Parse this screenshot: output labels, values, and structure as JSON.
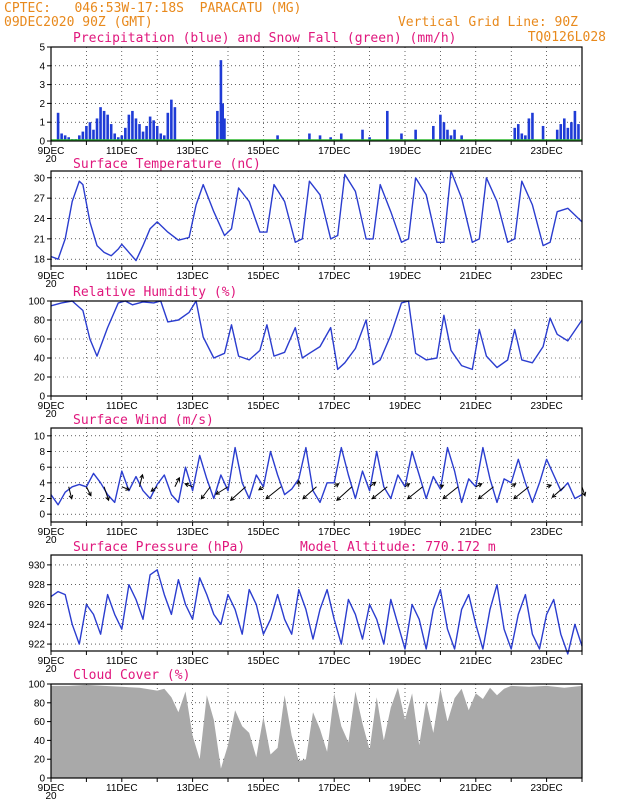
{
  "header": {
    "station_line": "CPTEC:   046:53W-17:18S  PARACATU (MG)",
    "date_line": "09DEC2020 90Z (GMT)",
    "grid_line": "Vertical Grid Line: 90Z",
    "code_line": "TQ0126L028"
  },
  "x_axis": {
    "labels": [
      "9DEC",
      "11DEC",
      "13DEC",
      "15DEC",
      "17DEC",
      "19DEC",
      "21DEC",
      "23DEC"
    ],
    "year_stub": "20",
    "range_days": [
      0,
      15
    ]
  },
  "colors": {
    "line": "#2b3dcf",
    "precip": "#1f3bd6",
    "snow": "#2fb82f",
    "cloud": "#a9a9a9",
    "wind_arrow": "#000000",
    "grid": "#000000"
  },
  "chart_data": [
    {
      "id": "precip",
      "type": "bar",
      "title": "Precipitation (blue) and Snow Fall (green) (mm/h)",
      "ylim": [
        0,
        5
      ],
      "yticks": [
        0,
        1,
        2,
        3,
        4,
        5
      ],
      "grid": true,
      "series": [
        {
          "name": "Precipitation",
          "x": [
            0.2,
            0.3,
            0.4,
            0.5,
            0.6,
            0.7,
            0.8,
            0.9,
            1.0,
            1.1,
            1.2,
            1.3,
            1.4,
            1.5,
            1.6,
            1.7,
            1.8,
            1.9,
            2.0,
            2.1,
            2.2,
            2.3,
            2.4,
            2.5,
            2.6,
            2.7,
            2.8,
            2.9,
            3.0,
            3.1,
            3.2,
            3.3,
            3.4,
            3.5,
            4.7,
            4.8,
            4.85,
            4.9,
            6.4,
            7.3,
            7.6,
            7.9,
            8.2,
            8.8,
            9.0,
            9.5,
            9.9,
            10.3,
            10.8,
            11.0,
            11.1,
            11.2,
            11.3,
            11.4,
            11.6,
            13.1,
            13.2,
            13.3,
            13.4,
            13.5,
            13.6,
            13.9,
            14.3,
            14.4,
            14.5,
            14.6,
            14.7,
            14.8,
            14.9
          ],
          "values": [
            1.5,
            0.4,
            0.3,
            0.2,
            0.1,
            0.1,
            0.3,
            0.5,
            0.8,
            1.0,
            0.6,
            1.2,
            1.8,
            1.6,
            1.4,
            0.9,
            0.4,
            0.2,
            0.3,
            0.7,
            1.4,
            1.6,
            1.2,
            0.9,
            0.5,
            0.8,
            1.3,
            1.1,
            0.8,
            0.4,
            0.3,
            1.5,
            2.2,
            1.8,
            1.6,
            4.3,
            2.0,
            1.2,
            0.3,
            0.4,
            0.3,
            0.2,
            0.4,
            0.6,
            0.2,
            1.6,
            0.4,
            0.6,
            0.8,
            1.4,
            1.0,
            0.6,
            0.3,
            0.6,
            0.3,
            0.7,
            0.9,
            0.4,
            0.3,
            1.2,
            1.5,
            0.8,
            0.6,
            0.9,
            1.2,
            0.7,
            1.0,
            1.6,
            0.9
          ]
        },
        {
          "name": "Snow Fall",
          "x": [],
          "values": []
        }
      ]
    },
    {
      "id": "temp",
      "type": "line",
      "title": "Surface Temperature (nC)",
      "ylim": [
        17,
        31
      ],
      "yticks": [
        18,
        21,
        24,
        27,
        30
      ],
      "grid": true,
      "x": [
        0,
        0.2,
        0.4,
        0.6,
        0.8,
        0.9,
        1.1,
        1.3,
        1.5,
        1.7,
        1.9,
        2.0,
        2.2,
        2.4,
        2.6,
        2.8,
        3.0,
        3.3,
        3.6,
        3.9,
        4.1,
        4.3,
        4.6,
        4.9,
        5.1,
        5.3,
        5.6,
        5.9,
        6.1,
        6.3,
        6.6,
        6.9,
        7.1,
        7.3,
        7.6,
        7.9,
        8.1,
        8.3,
        8.6,
        8.9,
        9.1,
        9.3,
        9.6,
        9.9,
        10.1,
        10.3,
        10.6,
        10.9,
        11.1,
        11.3,
        11.6,
        11.9,
        12.1,
        12.3,
        12.6,
        12.9,
        13.1,
        13.3,
        13.6,
        13.9,
        14.1,
        14.3,
        14.6,
        15.0
      ],
      "values": [
        18.4,
        18.0,
        21.0,
        26.5,
        29.5,
        29.0,
        23.5,
        20.0,
        19.0,
        18.5,
        19.5,
        20.2,
        19.0,
        17.8,
        20.0,
        22.5,
        23.5,
        22.0,
        20.8,
        21.2,
        26.0,
        29.0,
        25.0,
        21.5,
        22.5,
        28.5,
        26.5,
        22.0,
        22.0,
        29.0,
        26.5,
        20.5,
        21.0,
        29.5,
        27.5,
        21.0,
        21.5,
        30.5,
        28.0,
        21.0,
        21.0,
        29.0,
        25.0,
        20.5,
        21.0,
        30.0,
        27.5,
        20.5,
        20.5,
        31.0,
        27.0,
        20.5,
        21.0,
        30.0,
        26.5,
        20.5,
        21.0,
        29.5,
        26.0,
        20.0,
        20.5,
        25.0,
        25.5,
        23.5
      ]
    },
    {
      "id": "rh",
      "type": "line",
      "title": "Relative Humidity (%)",
      "ylim": [
        0,
        100
      ],
      "yticks": [
        0,
        20,
        40,
        60,
        80,
        100
      ],
      "grid": true,
      "x": [
        0,
        0.3,
        0.6,
        0.9,
        1.1,
        1.3,
        1.6,
        1.9,
        2.1,
        2.3,
        2.6,
        2.9,
        3.1,
        3.3,
        3.6,
        3.9,
        4.1,
        4.3,
        4.6,
        4.9,
        5.1,
        5.3,
        5.6,
        5.9,
        6.1,
        6.3,
        6.6,
        6.9,
        7.1,
        7.3,
        7.6,
        7.9,
        8.1,
        8.3,
        8.6,
        8.9,
        9.1,
        9.3,
        9.6,
        9.9,
        10.1,
        10.3,
        10.6,
        10.9,
        11.1,
        11.3,
        11.6,
        11.9,
        12.1,
        12.3,
        12.6,
        12.9,
        13.1,
        13.3,
        13.6,
        13.9,
        14.1,
        14.3,
        14.6,
        15.0
      ],
      "values": [
        95,
        98,
        100,
        90,
        60,
        42,
        72,
        98,
        100,
        96,
        99,
        98,
        100,
        78,
        80,
        88,
        100,
        62,
        40,
        45,
        75,
        42,
        38,
        48,
        75,
        42,
        46,
        72,
        40,
        45,
        52,
        72,
        28,
        35,
        50,
        80,
        33,
        38,
        64,
        98,
        100,
        45,
        38,
        40,
        85,
        48,
        32,
        28,
        70,
        42,
        30,
        38,
        70,
        38,
        35,
        52,
        82,
        65,
        58,
        80
      ]
    },
    {
      "id": "wind",
      "type": "line",
      "title": "Surface Wind (m/s)",
      "ylim": [
        -1,
        11
      ],
      "yticks": [
        0,
        2,
        4,
        6,
        8,
        10
      ],
      "grid": true,
      "x": [
        0,
        0.2,
        0.4,
        0.6,
        0.8,
        1.0,
        1.2,
        1.4,
        1.6,
        1.8,
        2.0,
        2.2,
        2.4,
        2.6,
        2.8,
        3.0,
        3.2,
        3.4,
        3.6,
        3.8,
        4.0,
        4.2,
        4.4,
        4.6,
        4.8,
        5.0,
        5.2,
        5.4,
        5.6,
        5.8,
        6.0,
        6.2,
        6.4,
        6.6,
        6.8,
        7.0,
        7.2,
        7.4,
        7.6,
        7.8,
        8.0,
        8.2,
        8.4,
        8.6,
        8.8,
        9.0,
        9.2,
        9.4,
        9.6,
        9.8,
        10.0,
        10.2,
        10.4,
        10.6,
        10.8,
        11.0,
        11.2,
        11.4,
        11.6,
        11.8,
        12.0,
        12.2,
        12.4,
        12.6,
        12.8,
        13.0,
        13.2,
        13.4,
        13.6,
        13.8,
        14.0,
        14.2,
        14.4,
        14.6,
        14.8,
        15.0
      ],
      "values": [
        2.5,
        1.2,
        2.8,
        3.5,
        3.8,
        3.5,
        5.2,
        4.0,
        2.5,
        1.5,
        5.5,
        3.0,
        4.8,
        3.0,
        2.0,
        3.8,
        5.0,
        2.5,
        1.5,
        6.0,
        3.0,
        7.5,
        4.5,
        2.0,
        5.0,
        3.0,
        8.5,
        4.0,
        2.0,
        5.0,
        3.5,
        8.0,
        5.0,
        2.5,
        3.2,
        4.5,
        8.5,
        3.0,
        1.5,
        4.0,
        4.0,
        8.5,
        5.0,
        2.0,
        5.5,
        3.0,
        8.0,
        3.5,
        2.0,
        5.0,
        3.5,
        8.0,
        5.0,
        2.0,
        4.8,
        3.2,
        8.5,
        5.5,
        1.5,
        4.5,
        3.5,
        8.5,
        4.5,
        1.5,
        4.5,
        4.0,
        7.0,
        4.0,
        1.5,
        4.0,
        7.0,
        5.0,
        3.0,
        4.0,
        2.0,
        2.5
      ],
      "arrows": {
        "x": [
          0.5,
          1.0,
          1.5,
          2.0,
          2.5,
          3.0,
          3.5,
          4.0,
          4.5,
          5.0,
          5.5,
          6.0,
          6.5,
          7.0,
          7.5,
          8.0,
          8.5,
          9.0,
          9.5,
          10.0,
          10.5,
          11.0,
          11.5,
          12.0,
          12.5,
          13.0,
          13.5,
          14.0,
          14.5,
          15.0
        ],
        "u": [
          0.2,
          0.3,
          0.3,
          0.5,
          0.2,
          -0.4,
          0.3,
          -0.5,
          -0.6,
          -0.8,
          -1.0,
          -0.3,
          -1.0,
          0.0,
          -0.9,
          0.3,
          -1.0,
          0.4,
          -1.0,
          0.3,
          -1.0,
          0.2,
          -1.0,
          0.4,
          -1.0,
          0.3,
          -1.0,
          0.3,
          -0.8,
          0.2
        ],
        "v": [
          -0.8,
          -0.6,
          -0.9,
          -0.2,
          0.8,
          -0.3,
          0.6,
          0.2,
          -0.8,
          -0.5,
          -0.9,
          -0.2,
          -0.8,
          0.4,
          -0.8,
          0.2,
          -0.9,
          0.3,
          -0.8,
          0.2,
          -0.8,
          0.1,
          -0.8,
          0.2,
          -0.8,
          0.2,
          -0.8,
          0.1,
          -0.7,
          -0.6
        ]
      }
    },
    {
      "id": "pressure",
      "type": "line",
      "title": "Surface Pressure (hPa)",
      "subtitle": "Model Altitude: 770.172 m",
      "ylim": [
        921.3,
        931
      ],
      "yticks": [
        922,
        924,
        926,
        928,
        930
      ],
      "grid": true,
      "x": [
        0,
        0.2,
        0.4,
        0.6,
        0.8,
        1.0,
        1.2,
        1.4,
        1.6,
        1.8,
        2.0,
        2.2,
        2.4,
        2.6,
        2.8,
        3.0,
        3.2,
        3.4,
        3.6,
        3.8,
        4.0,
        4.2,
        4.4,
        4.6,
        4.8,
        5.0,
        5.2,
        5.4,
        5.6,
        5.8,
        6.0,
        6.2,
        6.4,
        6.6,
        6.8,
        7.0,
        7.2,
        7.4,
        7.6,
        7.8,
        8.0,
        8.2,
        8.4,
        8.6,
        8.8,
        9.0,
        9.2,
        9.4,
        9.6,
        9.8,
        10.0,
        10.2,
        10.4,
        10.6,
        10.8,
        11.0,
        11.2,
        11.4,
        11.6,
        11.8,
        12.0,
        12.2,
        12.4,
        12.6,
        12.8,
        13.0,
        13.2,
        13.4,
        13.6,
        13.8,
        14.0,
        14.2,
        14.4,
        14.6,
        14.8,
        15.0
      ],
      "values": [
        926.8,
        927.3,
        927.0,
        924.0,
        922.0,
        926.0,
        925.0,
        923.0,
        927.0,
        925.0,
        923.5,
        928.0,
        926.5,
        924.5,
        929.0,
        929.5,
        927.0,
        925.0,
        928.5,
        926.0,
        924.5,
        928.7,
        927.0,
        925.0,
        924.0,
        927.0,
        925.5,
        923.0,
        927.5,
        926.0,
        923.0,
        924.5,
        927.0,
        924.5,
        923.0,
        927.5,
        925.5,
        922.5,
        925.5,
        927.5,
        924.5,
        922.0,
        926.5,
        925.0,
        922.5,
        926.0,
        924.5,
        922.0,
        926.5,
        924.0,
        921.5,
        926.0,
        924.5,
        921.5,
        925.5,
        927.5,
        923.5,
        921.5,
        925.5,
        927.0,
        924.0,
        921.5,
        925.5,
        928.0,
        923.5,
        921.5,
        925.0,
        927.0,
        923.0,
        921.5,
        925.0,
        926.5,
        923.0,
        921.0,
        924.0,
        921.8
      ]
    },
    {
      "id": "cloud",
      "type": "area",
      "title": "Cloud Cover (%)",
      "ylim": [
        0,
        100
      ],
      "yticks": [
        0,
        20,
        40,
        60,
        80,
        100
      ],
      "grid": true,
      "x": [
        0,
        0.5,
        1.0,
        1.5,
        2.0,
        2.5,
        3.0,
        3.2,
        3.4,
        3.6,
        3.8,
        4.0,
        4.2,
        4.4,
        4.6,
        4.8,
        5.0,
        5.2,
        5.4,
        5.6,
        5.8,
        6.0,
        6.2,
        6.4,
        6.6,
        6.8,
        7.0,
        7.2,
        7.4,
        7.6,
        7.8,
        8.0,
        8.2,
        8.4,
        8.6,
        8.8,
        9.0,
        9.2,
        9.4,
        9.6,
        9.8,
        10.0,
        10.2,
        10.4,
        10.6,
        10.8,
        11.0,
        11.2,
        11.4,
        11.6,
        11.8,
        12.0,
        12.2,
        12.4,
        12.6,
        12.8,
        13.0,
        13.5,
        14.0,
        14.5,
        15.0
      ],
      "values": [
        98,
        98,
        99,
        98,
        97,
        96,
        93,
        95,
        86,
        70,
        92,
        45,
        20,
        88,
        62,
        10,
        35,
        72,
        55,
        48,
        22,
        65,
        25,
        32,
        88,
        45,
        18,
        20,
        70,
        52,
        28,
        90,
        55,
        38,
        92,
        58,
        30,
        86,
        40,
        75,
        96,
        62,
        90,
        35,
        82,
        48,
        95,
        60,
        85,
        95,
        72,
        90,
        84,
        96,
        88,
        95,
        98,
        97,
        98,
        96,
        98
      ]
    }
  ]
}
